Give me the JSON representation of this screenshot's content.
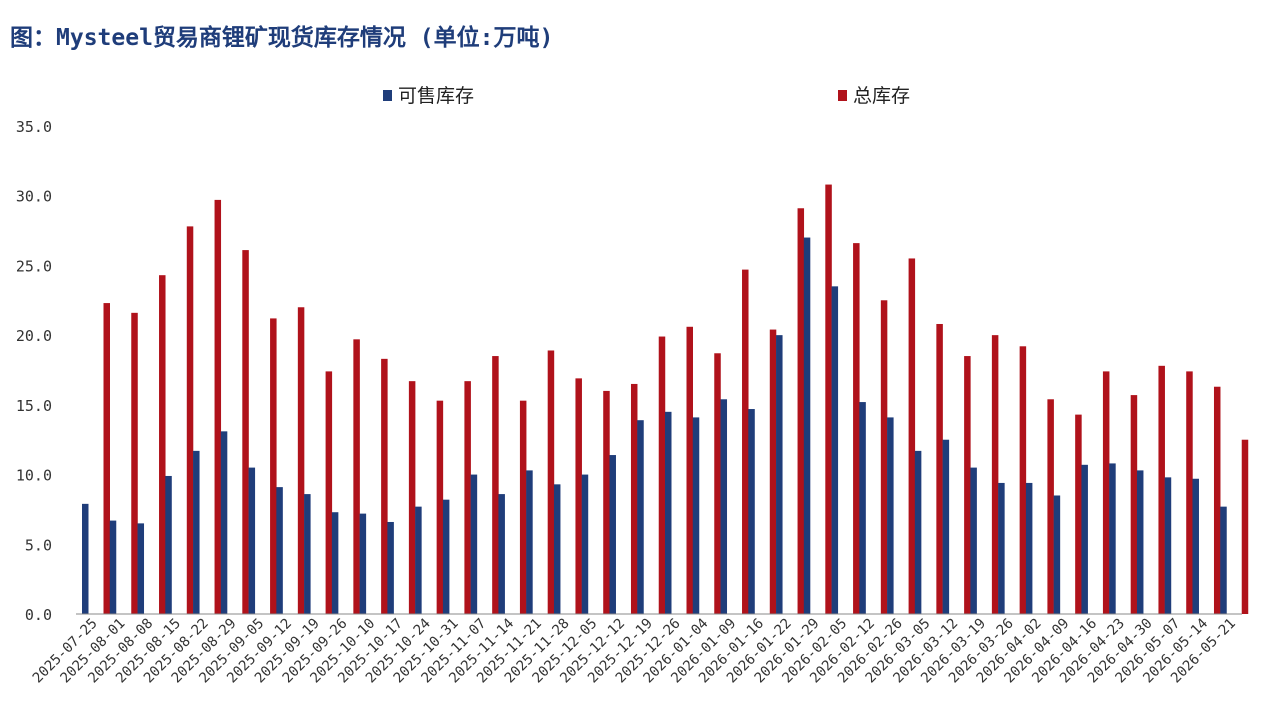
{
  "title": "图：Mysteel贸易商锂矿现货库存情况 (单位:万吨)",
  "colors": {
    "sellable": "#1f3d7a",
    "total": "#b0121b",
    "title": "#1f3d7a",
    "axis": "#888888"
  },
  "chart_data": {
    "type": "bar",
    "title": "图：Mysteel贸易商锂矿现货库存情况 (单位:万吨)",
    "xlabel": "",
    "ylabel": "",
    "ylim": [
      0,
      35
    ],
    "yticks": [
      "0.0",
      "5.0",
      "10.0",
      "15.0",
      "20.0",
      "25.0",
      "30.0",
      "35.0"
    ],
    "grid": false,
    "legend_position": "top-center",
    "categories": [
      "2025-07-25",
      "2025-08-01",
      "2025-08-08",
      "2025-08-15",
      "2025-08-22",
      "2025-08-29",
      "2025-09-05",
      "2025-09-12",
      "2025-09-19",
      "2025-09-26",
      "2025-10-10",
      "2025-10-17",
      "2025-10-24",
      "2025-10-31",
      "2025-11-07",
      "2025-11-14",
      "2025-11-21",
      "2025-11-28",
      "2025-12-05",
      "2025-12-12",
      "2025-12-19",
      "2025-12-26",
      "2026-01-04",
      "2026-01-09",
      "2026-01-16",
      "2026-01-22",
      "2026-01-29",
      "2026-02-05",
      "2026-02-12",
      "2026-02-26",
      "2026-03-05",
      "2026-03-12",
      "2026-03-19",
      "2026-03-26",
      "2026-04-02",
      "2026-04-09",
      "2026-04-16",
      "2026-04-23",
      "2026-04-30",
      "2026-05-07",
      "2026-05-14",
      "2026-05-21"
    ],
    "series": [
      {
        "name": "可售库存",
        "values": [
          7.9,
          6.7,
          6.5,
          9.9,
          11.7,
          13.1,
          10.5,
          9.1,
          8.6,
          7.3,
          7.2,
          6.6,
          7.7,
          8.2,
          10.0,
          8.6,
          10.3,
          9.3,
          10.0,
          11.4,
          13.9,
          14.5,
          14.1,
          15.4,
          14.7,
          20.0,
          27.0,
          23.5,
          15.2,
          14.1,
          11.7,
          12.5,
          10.5,
          9.4,
          9.4,
          8.5,
          10.7,
          10.8,
          10.3,
          9.8,
          9.7,
          7.7
        ]
      },
      {
        "name": "总库存",
        "values": [
          22.3,
          21.6,
          24.3,
          27.8,
          29.7,
          26.1,
          21.2,
          22.0,
          17.4,
          19.7,
          18.3,
          16.7,
          15.3,
          16.7,
          18.5,
          15.3,
          18.9,
          16.9,
          16.0,
          16.5,
          19.9,
          20.6,
          18.7,
          24.7,
          20.4,
          29.1,
          30.8,
          26.6,
          22.5,
          25.5,
          20.8,
          18.5,
          20.0,
          19.2,
          15.4,
          14.3,
          17.4,
          15.7,
          17.8,
          17.4,
          16.3,
          12.5
        ]
      }
    ]
  }
}
